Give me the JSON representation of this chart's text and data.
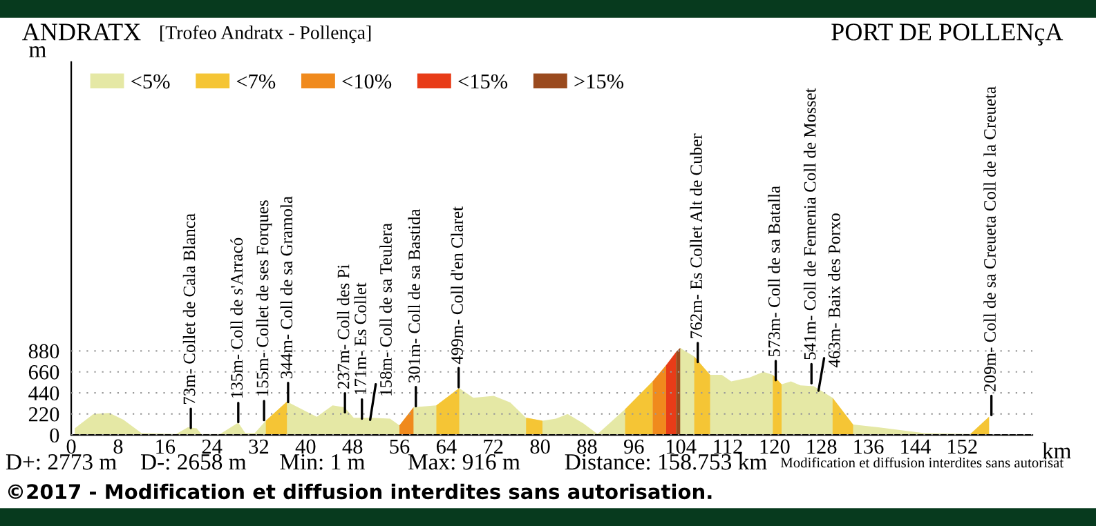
{
  "chart_data": {
    "type": "area",
    "title": "[Trofeo Andratx - Pollença]",
    "xlabel": "km",
    "ylabel": "m",
    "xlim": [
      0,
      164
    ],
    "ylim": [
      0,
      3900
    ],
    "xticks": [
      0,
      8,
      16,
      24,
      32,
      40,
      48,
      56,
      64,
      72,
      80,
      88,
      96,
      104,
      112,
      120,
      128,
      136,
      144,
      152
    ],
    "yticks": [
      0,
      220,
      440,
      660,
      880
    ],
    "grid": "y",
    "legend": "top left",
    "series": [
      {
        "name": "<5%",
        "color": "#e5e8a5",
        "x": [
          0.6,
          3.8,
          6.5,
          8.9,
          12,
          17.9,
          19.9,
          21.4,
          22.2,
          25.4,
          28.5,
          29.7,
          31.3,
          33.2,
          36.8,
          40.3,
          41.9,
          44.6,
          46.6,
          48.2,
          51.3,
          54.4,
          56,
          58.4,
          62.3,
          66.2,
          68.6,
          72.1,
          74.9,
          77.6,
          80.4,
          82.7,
          84.7,
          87.4,
          89.8,
          94.5,
          99.2,
          103.9,
          106.3,
          109,
          111,
          112.6,
          115.7,
          118.1,
          119.7,
          121.2,
          122.8,
          124.4,
          126.7,
          129.9,
          133.4,
          137.7,
          145.6,
          153.4,
          156.6
        ],
        "values": [
          70,
          220,
          230,
          160,
          20,
          10,
          80,
          70,
          10,
          10,
          130,
          20,
          20,
          150,
          350,
          240,
          190,
          310,
          290,
          180,
          180,
          170,
          100,
          290,
          310,
          490,
          390,
          410,
          340,
          180,
          150,
          170,
          220,
          120,
          10,
          270,
          560,
          910,
          820,
          630,
          630,
          560,
          600,
          660,
          630,
          530,
          560,
          520,
          510,
          390,
          110,
          80,
          20,
          10,
          190
        ]
      },
      {
        "name": "<7%",
        "color": "#f5c535",
        "x": [
          33.2,
          36.8,
          50,
          62.3,
          66.2,
          70,
          77.6,
          80.4,
          90,
          94.5,
          99.2,
          102,
          106.3,
          109,
          115,
          119.7,
          121.2,
          125,
          129.9,
          133.4,
          140,
          153.4,
          156.6
        ],
        "values": [
          150,
          350,
          null,
          310,
          490,
          null,
          180,
          150,
          null,
          270,
          560,
          null,
          820,
          630,
          null,
          630,
          530,
          null,
          390,
          110,
          null,
          10,
          190
        ]
      },
      {
        "name": "<10%",
        "color": "#f08a1d",
        "x": [
          56,
          58.4,
          80,
          99.2,
          101.5
        ],
        "values": [
          100,
          290,
          null,
          560,
          730
        ]
      },
      {
        "name": "<15%",
        "color": "#e83c18",
        "x": [
          101.5,
          103.2
        ],
        "values": [
          730,
          870
        ]
      },
      {
        "name": ">15%",
        "color": "#9a4a1e",
        "x": [
          103.2,
          103.9
        ],
        "values": [
          870,
          910
        ]
      }
    ],
    "annotations": [
      {
        "text": "73m- Collet de Cala Blanca",
        "x": 20.4,
        "y": 73
      },
      {
        "text": "135m- Coll de s'Arracó",
        "x": 28.5,
        "y": 135
      },
      {
        "text": "155m- Collet de ses Forques",
        "x": 32.9,
        "y": 155
      },
      {
        "text": "344m- Coll de sa Gramola",
        "x": 37.0,
        "y": 344
      },
      {
        "text": "237m- Coll des Pi",
        "x": 46.7,
        "y": 237
      },
      {
        "text": "171m- Es Collet",
        "x": 49.6,
        "y": 171
      },
      {
        "text": "158m- Coll de sa Teulera",
        "x": 51.0,
        "y": 158
      },
      {
        "text": "301m- Coll de sa Bastida",
        "x": 58.8,
        "y": 301
      },
      {
        "text": "499m- Coll d'en Claret",
        "x": 66.1,
        "y": 499
      },
      {
        "text": "762m- Es Collet Alt de Cuber",
        "x": 106.9,
        "y": 762
      },
      {
        "text": "573m- Coll de sa Batalla",
        "x": 120.2,
        "y": 573
      },
      {
        "text": "541m- Coll de Femenia Coll de Mosset",
        "x": 126.3,
        "y": 541
      },
      {
        "text": "463m- Baix des Porxo",
        "x": 127.5,
        "y": 463
      },
      {
        "text": "209m- Coll de sa Creueta Coll de la Creueta",
        "x": 157.0,
        "y": 209
      },
      "ANDRATX",
      "PORT DE POLLENçA",
      "D+: 2773 m",
      "D-: 2658 m",
      "Min: 1 m",
      "Max: 916 m",
      "Distance: 158.753 km",
      "Modification et diffusion interdites sans autorisat",
      "©2017 - Modification et diffusion interdites sans autorisation."
    ]
  }
}
